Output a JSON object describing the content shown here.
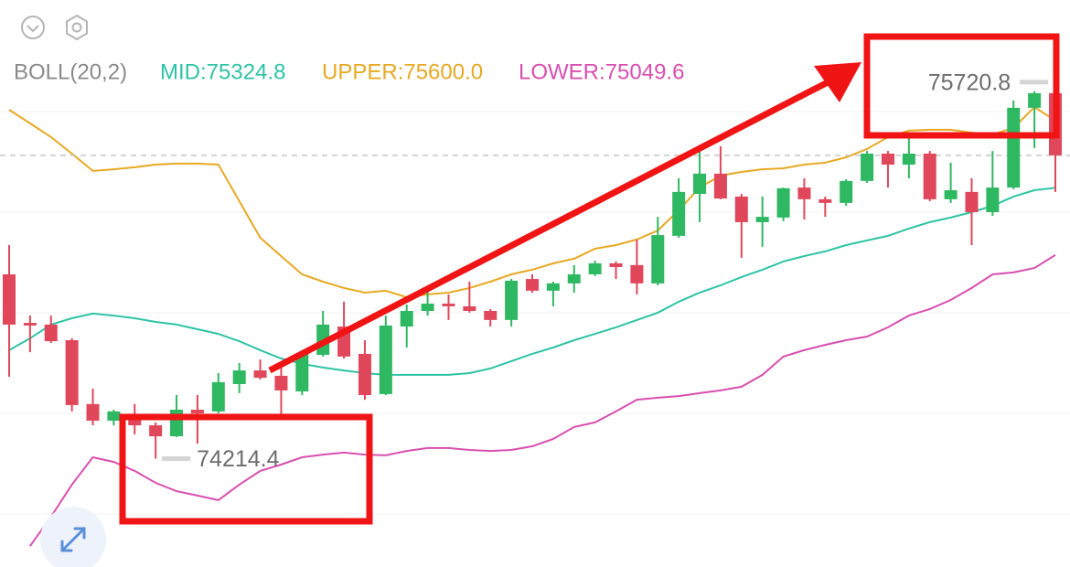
{
  "chart_data": {
    "type": "candlestick",
    "indicator": "BOLL(20,2)",
    "ylim": [
      73770,
      76095
    ],
    "up_color": "#2fb862",
    "down_color": "#e0475a",
    "open": [
      74970,
      74771,
      74764,
      74700,
      74438,
      74370,
      74396,
      74351,
      74306,
      74415,
      74408,
      74520,
      74576,
      74554,
      74490,
      74640,
      74756,
      74644,
      74479,
      74756,
      74820,
      74850,
      74839,
      74820,
      74783,
      74951,
      74903,
      74933,
      74970,
      75015,
      75008,
      74933,
      75128,
      75300,
      75383,
      75289,
      75184,
      75203,
      75326,
      75278,
      75263,
      75353,
      75465,
      75420,
      75465,
      75278,
      75308,
      75225,
      75326,
      75653,
      75713
    ],
    "high": [
      75090,
      74801,
      74801,
      74708,
      74501,
      74415,
      74438,
      74363,
      74475,
      74475,
      74565,
      74606,
      74621,
      74595,
      74651,
      74820,
      74858,
      74700,
      74801,
      74846,
      74903,
      74888,
      74940,
      74828,
      74951,
      74970,
      74940,
      75008,
      75026,
      75023,
      75113,
      75206,
      75364,
      75488,
      75495,
      75300,
      75289,
      75326,
      75364,
      75289,
      75360,
      75476,
      75476,
      75533,
      75476,
      75428,
      75364,
      75476,
      75683,
      75720.8,
      75720
    ],
    "low": [
      74550,
      74651,
      74689,
      74408,
      74351,
      74351,
      74314,
      74214.4,
      74303,
      74276,
      74400,
      74483,
      74539,
      74396,
      74475,
      74633,
      74625,
      74456,
      74475,
      74670,
      74801,
      74783,
      74813,
      74756,
      74756,
      74895,
      74839,
      74895,
      74963,
      74951,
      74888,
      74925,
      75120,
      75184,
      75278,
      75038,
      75083,
      75188,
      75195,
      75206,
      75251,
      75345,
      75326,
      75364,
      75270,
      75263,
      75090,
      75210,
      75319,
      75488,
      75308
    ],
    "close": [
      74764,
      74760,
      74696,
      74434,
      74370,
      74408,
      74351,
      74306,
      74415,
      74400,
      74528,
      74576,
      74546,
      74494,
      74644,
      74764,
      74633,
      74475,
      74760,
      74820,
      74850,
      74839,
      74820,
      74783,
      74944,
      74903,
      74933,
      74970,
      75015,
      75000,
      74933,
      75131,
      75308,
      75383,
      75281,
      75184,
      75206,
      75323,
      75278,
      75263,
      75353,
      75465,
      75420,
      75465,
      75278,
      75315,
      75225,
      75326,
      75653,
      75713,
      75458
    ],
    "series": [
      {
        "name": "MID:75324.8",
        "color": "#2ec4a5",
        "values": [
          74659,
          74708,
          74764,
          74790,
          74809,
          74801,
          74790,
          74775,
          74764,
          74745,
          74726,
          74696,
          74659,
          74625,
          74603,
          74588,
          74576,
          74565,
          74558,
          74558,
          74558,
          74558,
          74565,
          74584,
          74614,
          74644,
          74670,
          74700,
          74726,
          74753,
          74783,
          74813,
          74858,
          74895,
          74925,
          74959,
          74989,
          75023,
          75045,
          75064,
          75090,
          75109,
          75128,
          75158,
          75184,
          75203,
          75225,
          75251,
          75289,
          75315,
          75324.8
        ]
      },
      {
        "name": "UPPER:75600.0",
        "color": "#e8a923",
        "values": [
          75645,
          75589,
          75533,
          75465,
          75394,
          75401,
          75409,
          75420,
          75424,
          75424,
          75420,
          75270,
          75120,
          75045,
          74970,
          74940,
          74914,
          74895,
          74903,
          74876,
          74888,
          74895,
          74914,
          74940,
          74970,
          74989,
          75015,
          75034,
          75075,
          75090,
          75113,
          75150,
          75233,
          75326,
          75375,
          75390,
          75401,
          75405,
          75420,
          75428,
          75450,
          75484,
          75533,
          75559,
          75563,
          75563,
          75551,
          75544,
          75570,
          75656,
          75600.0
        ]
      },
      {
        "name": "LOWER:75049.6",
        "color": "#d94fb0",
        "values": [
          null,
          73856,
          73976,
          74108,
          74220,
          74201,
          74164,
          74115,
          74081,
          74063,
          74044,
          74108,
          74164,
          74190,
          74220,
          74231,
          74239,
          74231,
          74228,
          74246,
          74258,
          74258,
          74250,
          74246,
          74250,
          74265,
          74295,
          74344,
          74363,
          74408,
          74456,
          74464,
          74471,
          74483,
          74494,
          74509,
          74558,
          74633,
          74659,
          74681,
          74700,
          74715,
          74753,
          74801,
          74828,
          74865,
          74914,
          74970,
          74978,
          74996,
          75049.6
        ]
      }
    ]
  }
}
